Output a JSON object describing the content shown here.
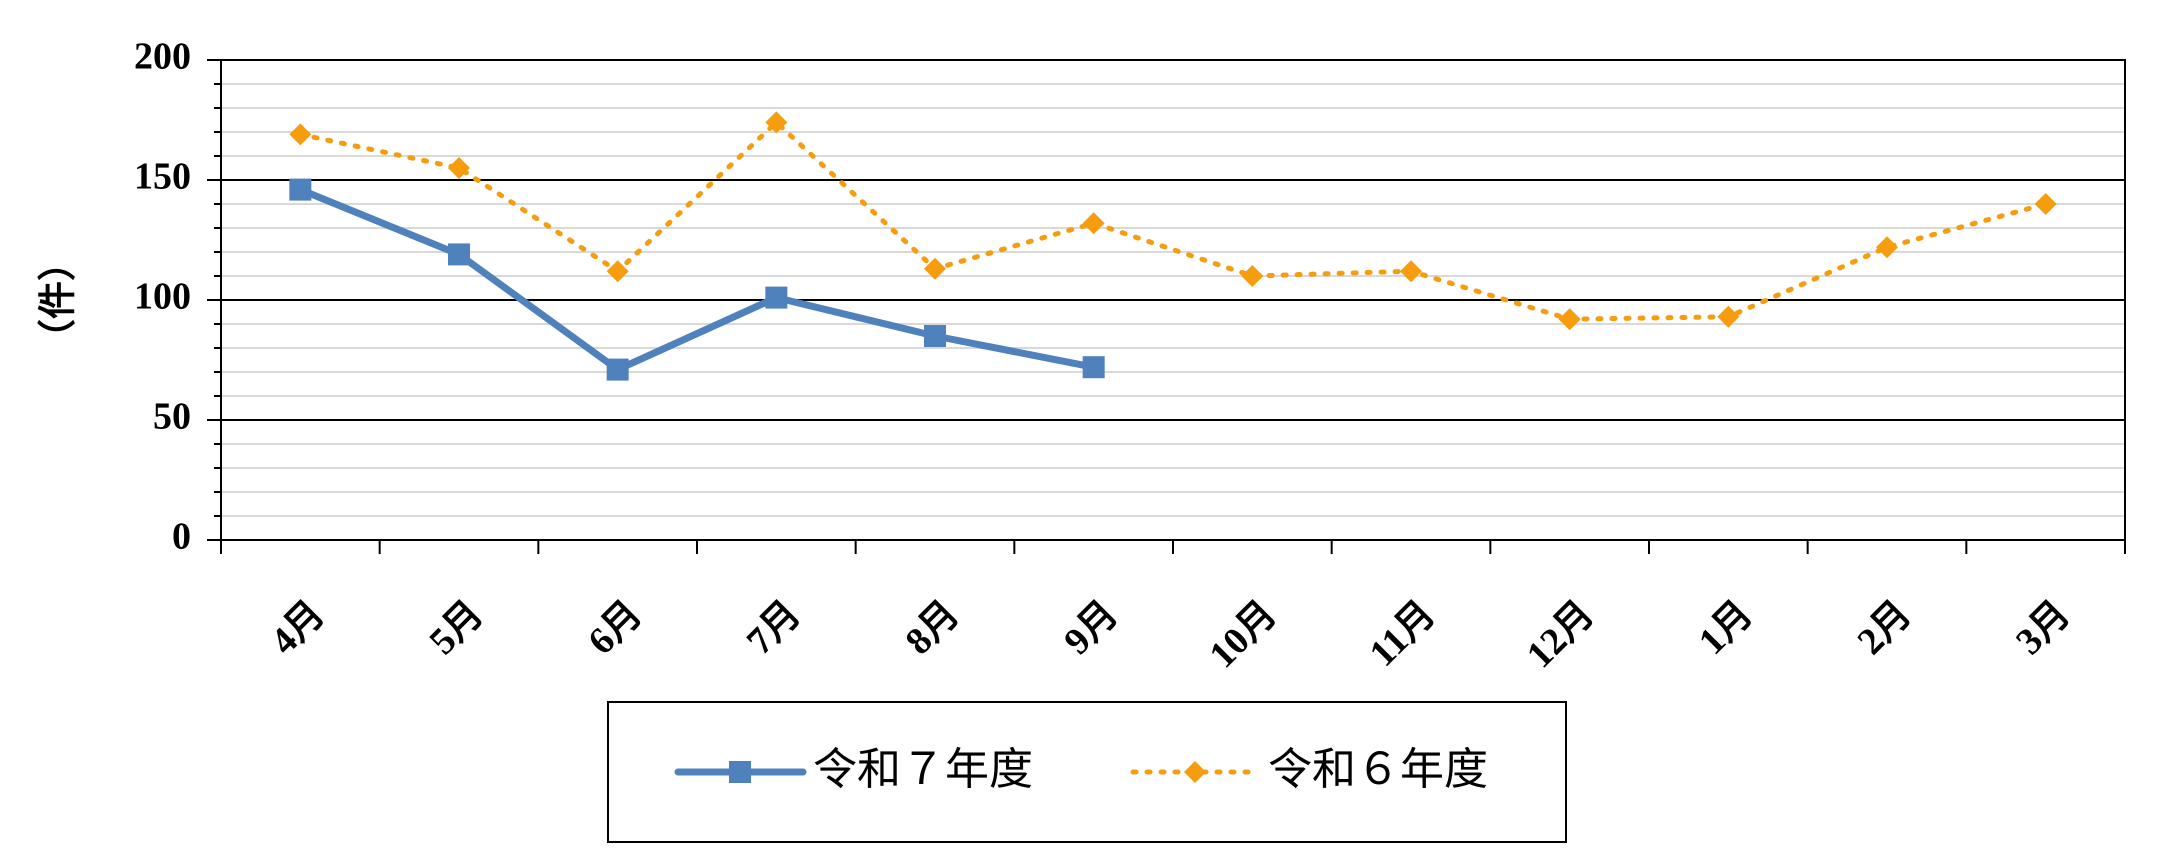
{
  "chart_data": {
    "type": "line",
    "y_label": "（件）",
    "categories": [
      "4月",
      "5月",
      "6月",
      "7月",
      "8月",
      "9月",
      "10月",
      "11月",
      "12月",
      "1月",
      "2月",
      "3月"
    ],
    "series": [
      {
        "name": "令和７年度",
        "color": "#4f81bd",
        "values": [
          146,
          119,
          71,
          101,
          85,
          72,
          null,
          null,
          null,
          null,
          null,
          null
        ]
      },
      {
        "name": "令和６年度",
        "color": "#f59d0e",
        "values": [
          169,
          155,
          112,
          174,
          113,
          132,
          110,
          112,
          92,
          93,
          122,
          140
        ]
      }
    ],
    "ylim": [
      0,
      200
    ],
    "yticks": [
      0,
      50,
      100,
      150,
      200
    ],
    "grid": true,
    "legend": "bottom"
  }
}
